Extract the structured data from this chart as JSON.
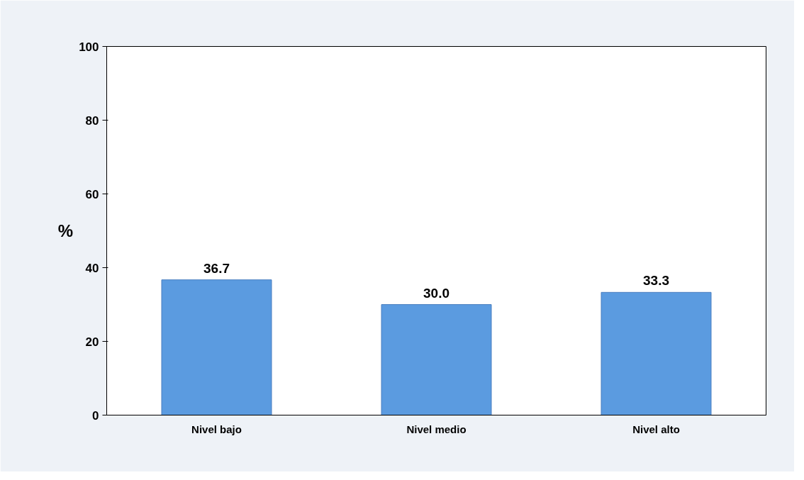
{
  "chart_data": {
    "type": "bar",
    "ylabel": "%",
    "categories": [
      "Nivel bajo",
      "Nivel medio",
      "Nivel alto"
    ],
    "values": [
      36.7,
      30.0,
      33.3
    ],
    "value_labels": [
      "36.7",
      "30.0",
      "33.3"
    ],
    "color": "#5b9be0",
    "ylim": [
      0,
      100
    ],
    "yticks": [
      0,
      20,
      40,
      60,
      80,
      100
    ],
    "grid": false
  }
}
